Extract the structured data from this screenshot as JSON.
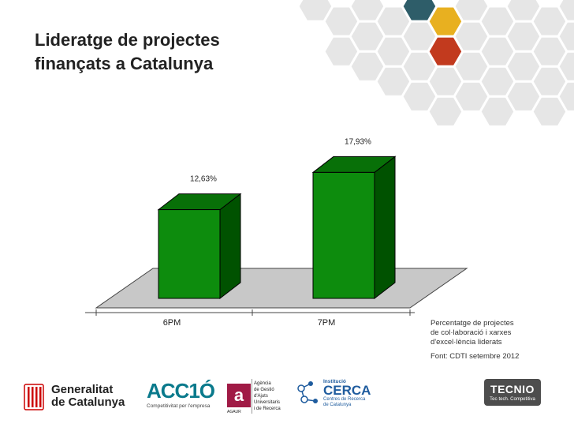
{
  "slide": {
    "title_line1": "Lideratge de projectes",
    "title_line2": "finançats a Catalunya"
  },
  "chart_data": {
    "type": "bar",
    "style": "3d",
    "categories": [
      "6PM",
      "7PM"
    ],
    "values": [
      12.63,
      17.93
    ],
    "data_labels": [
      "12,63%",
      "17,93%"
    ],
    "ylim": [
      0,
      20
    ],
    "unit": "%",
    "colors": {
      "bar_front": "#0d8c0d",
      "bar_side": "#005200",
      "bar_top": "#087008",
      "floor": "#c8c8c8"
    }
  },
  "notes": {
    "line1": "Percentatge de projectes",
    "line2": "de col·laboració i xarxes",
    "line3": "d'excel·lència liderats",
    "source": "Font: CDTI setembre 2012"
  },
  "footer": {
    "generalitat_line1": "Generalitat",
    "generalitat_line2": "de Catalunya",
    "acc10_name": "ACC1Ó",
    "acc10_tagline": "Competitivitat per l'empresa",
    "agaur_line1": "Agència",
    "agaur_line2": "de Gestió",
    "agaur_line3": "d'Ajuts",
    "agaur_line4": "Universitaris",
    "agaur_line5": "i de Recerca",
    "agaur_acronym": "AGAUR",
    "cerca_line1": "Institució",
    "cerca_name": "CERCA",
    "cerca_line3": "Centres de Recerca",
    "cerca_line4": "de Catalunya",
    "tecnio_name": "TECNIO",
    "tecnio_tagline": "Tec·tech. Competitiva"
  },
  "decor_colors": [
    "#2e5d69",
    "#e8b020",
    "#c23a1e",
    "#e4e4e4"
  ]
}
